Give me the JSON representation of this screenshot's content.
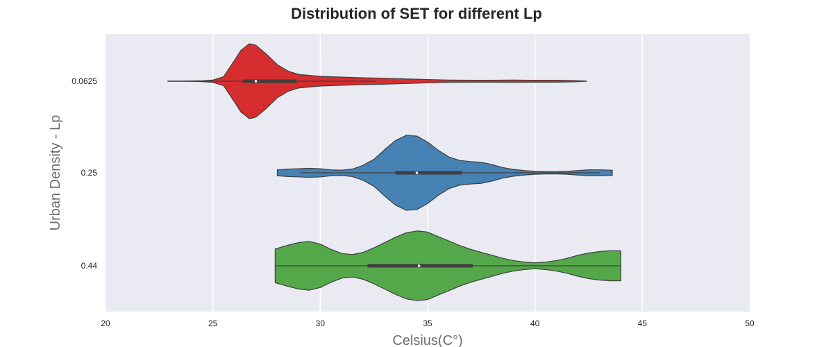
{
  "chart_data": {
    "type": "violin",
    "orientation": "horizontal",
    "title": "Distribution of SET for different Lp",
    "xlabel": "Celsius(C°)",
    "ylabel": "Urban Density - Lp",
    "xlim": [
      20,
      50
    ],
    "xticks": [
      "20",
      "25",
      "30",
      "35",
      "40",
      "45",
      "50"
    ],
    "grid": true,
    "background": "#eaeaf2",
    "categories": [
      "0.0625",
      "0.25",
      "0.44"
    ],
    "series": [
      {
        "category": "0.0625",
        "color": "#d62d2e",
        "min": 22.9,
        "q1": 26.4,
        "median": 27.0,
        "q3": 28.9,
        "whisker_low": 22.9,
        "whisker_high": 32.6,
        "max": 42.4,
        "density": [
          [
            22.9,
            0.002
          ],
          [
            23.5,
            0.003
          ],
          [
            24.0,
            0.006
          ],
          [
            24.5,
            0.012
          ],
          [
            25.0,
            0.03
          ],
          [
            25.5,
            0.12
          ],
          [
            26.0,
            0.55
          ],
          [
            26.3,
            0.82
          ],
          [
            26.7,
            1.0
          ],
          [
            27.0,
            0.96
          ],
          [
            27.5,
            0.72
          ],
          [
            28.0,
            0.44
          ],
          [
            28.5,
            0.27
          ],
          [
            29.0,
            0.18
          ],
          [
            30.0,
            0.13
          ],
          [
            31.0,
            0.11
          ],
          [
            32.0,
            0.09
          ],
          [
            33.0,
            0.08
          ],
          [
            34.0,
            0.06
          ],
          [
            35.0,
            0.045
          ],
          [
            36.0,
            0.03
          ],
          [
            37.0,
            0.025
          ],
          [
            38.0,
            0.025
          ],
          [
            39.0,
            0.03
          ],
          [
            40.0,
            0.025
          ],
          [
            41.0,
            0.025
          ],
          [
            41.7,
            0.02
          ],
          [
            42.4,
            0.002
          ]
        ]
      },
      {
        "category": "0.25",
        "color": "#4682b4",
        "min": 28.0,
        "q1": 33.5,
        "median": 34.5,
        "q3": 36.6,
        "whisker_low": 29.1,
        "whisker_high": 43.0,
        "max": 43.6,
        "density": [
          [
            28.0,
            0.08
          ],
          [
            28.5,
            0.1
          ],
          [
            29.0,
            0.11
          ],
          [
            29.5,
            0.12
          ],
          [
            30.0,
            0.11
          ],
          [
            30.5,
            0.08
          ],
          [
            31.0,
            0.07
          ],
          [
            31.5,
            0.1
          ],
          [
            32.0,
            0.2
          ],
          [
            32.5,
            0.36
          ],
          [
            33.0,
            0.62
          ],
          [
            33.5,
            0.86
          ],
          [
            34.0,
            1.0
          ],
          [
            34.5,
            0.98
          ],
          [
            35.0,
            0.82
          ],
          [
            35.5,
            0.6
          ],
          [
            36.0,
            0.42
          ],
          [
            36.5,
            0.33
          ],
          [
            37.0,
            0.3
          ],
          [
            37.5,
            0.28
          ],
          [
            38.0,
            0.22
          ],
          [
            38.5,
            0.14
          ],
          [
            39.0,
            0.09
          ],
          [
            39.5,
            0.06
          ],
          [
            40.0,
            0.04
          ],
          [
            40.5,
            0.03
          ],
          [
            41.0,
            0.03
          ],
          [
            41.5,
            0.04
          ],
          [
            42.0,
            0.06
          ],
          [
            42.5,
            0.08
          ],
          [
            43.0,
            0.08
          ],
          [
            43.6,
            0.07
          ]
        ]
      },
      {
        "category": "0.44",
        "color": "#54a84a",
        "min": 27.9,
        "q1": 32.2,
        "median": 34.6,
        "q3": 37.1,
        "whisker_low": 27.9,
        "whisker_high": 44.0,
        "max": 44.0,
        "density": [
          [
            27.9,
            0.45
          ],
          [
            28.5,
            0.55
          ],
          [
            29.0,
            0.62
          ],
          [
            29.5,
            0.65
          ],
          [
            30.0,
            0.58
          ],
          [
            30.5,
            0.44
          ],
          [
            31.0,
            0.33
          ],
          [
            31.5,
            0.3
          ],
          [
            32.0,
            0.36
          ],
          [
            32.5,
            0.48
          ],
          [
            33.0,
            0.62
          ],
          [
            33.5,
            0.76
          ],
          [
            34.0,
            0.88
          ],
          [
            34.5,
            0.93
          ],
          [
            35.0,
            0.9
          ],
          [
            35.5,
            0.78
          ],
          [
            36.0,
            0.66
          ],
          [
            36.5,
            0.54
          ],
          [
            37.0,
            0.44
          ],
          [
            37.5,
            0.36
          ],
          [
            38.0,
            0.28
          ],
          [
            38.5,
            0.2
          ],
          [
            39.0,
            0.14
          ],
          [
            39.5,
            0.1
          ],
          [
            40.0,
            0.08
          ],
          [
            40.5,
            0.1
          ],
          [
            41.0,
            0.14
          ],
          [
            41.5,
            0.2
          ],
          [
            42.0,
            0.28
          ],
          [
            42.5,
            0.34
          ],
          [
            43.0,
            0.38
          ],
          [
            43.5,
            0.4
          ],
          [
            44.0,
            0.4
          ]
        ]
      }
    ]
  }
}
